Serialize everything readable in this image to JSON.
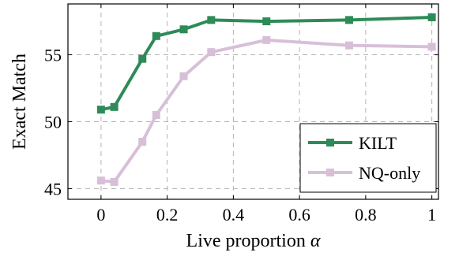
{
  "chart_data": {
    "type": "line",
    "xlabel_text": "Live proportion ",
    "xlabel_symbol": "α",
    "ylabel": "Exact Match",
    "xlim": [
      -0.1,
      1.02
    ],
    "ylim": [
      44.2,
      58.8
    ],
    "xticks": [
      0,
      0.2,
      0.4,
      0.6,
      0.8,
      1
    ],
    "xtick_labels": [
      "0",
      "0.2",
      "0.4",
      "0.6",
      "0.8",
      "1"
    ],
    "yticks": [
      45,
      50,
      55
    ],
    "ytick_labels": [
      "45",
      "50",
      "55"
    ],
    "grid": true,
    "legend_position": "bottom-right",
    "series": [
      {
        "name": "KILT",
        "color": "#2e8b57",
        "x": [
          0,
          0.04,
          0.125,
          0.167,
          0.25,
          0.333,
          0.5,
          0.75,
          1
        ],
        "y": [
          50.9,
          51.1,
          54.7,
          56.4,
          56.9,
          57.6,
          57.5,
          57.6,
          57.8
        ]
      },
      {
        "name": "NQ-only",
        "color": "#d8bfd8",
        "x": [
          0,
          0.04,
          0.125,
          0.167,
          0.25,
          0.333,
          0.5,
          0.75,
          1
        ],
        "y": [
          45.6,
          45.5,
          48.5,
          50.5,
          53.4,
          55.2,
          56.1,
          55.7,
          55.6
        ]
      }
    ]
  }
}
